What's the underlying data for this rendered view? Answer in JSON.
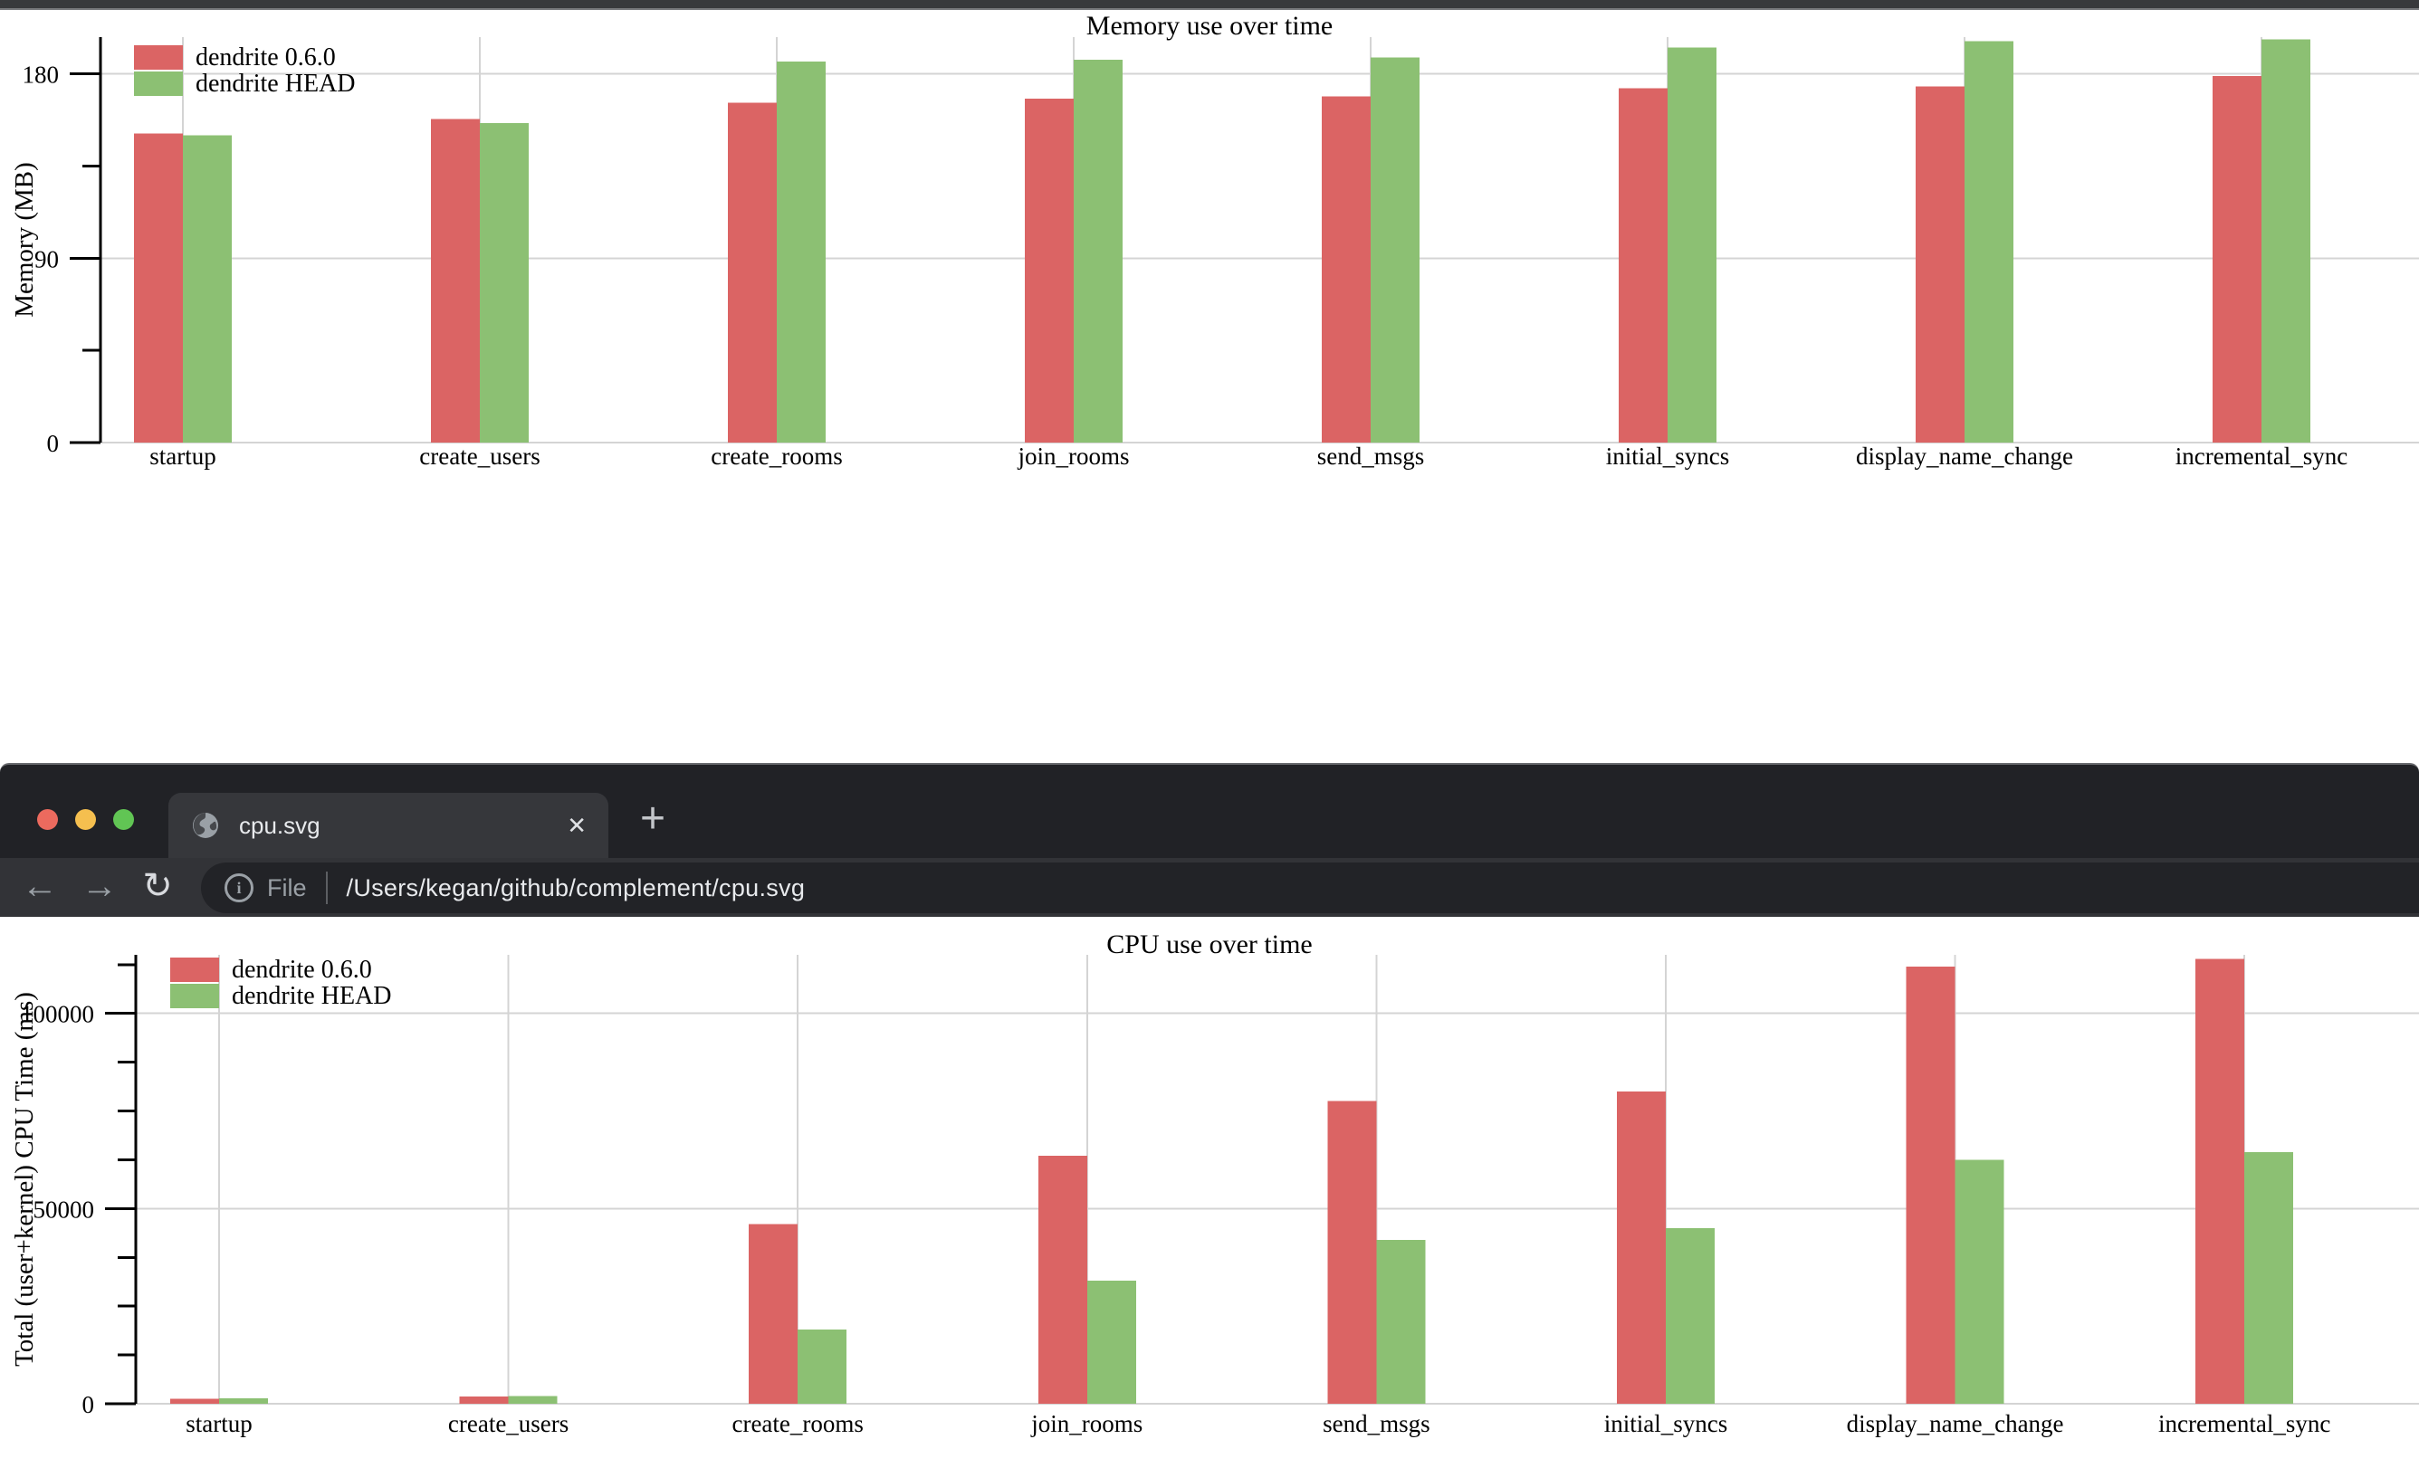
{
  "browser": {
    "traffic_lights": [
      {
        "name": "close",
        "color": "#ec6a5e"
      },
      {
        "name": "minimize",
        "color": "#f5bf4f"
      },
      {
        "name": "zoom",
        "color": "#61c554"
      }
    ],
    "tab": {
      "title": "cpu.svg",
      "close_glyph": "✕"
    },
    "new_tab_glyph": "+",
    "toolbar": {
      "back_glyph": "←",
      "forward_glyph": "→",
      "reload_glyph": "↻",
      "info_glyph": "i",
      "file_label": "File",
      "url": "/Users/kegan/github/complement/cpu.svg"
    }
  },
  "chart_data": [
    {
      "id": "memory",
      "type": "bar",
      "title": "Memory use over time",
      "xlabel": "",
      "ylabel": "Memory (MB)",
      "categories": [
        "startup",
        "create_users",
        "create_rooms",
        "join_rooms",
        "send_msgs",
        "initial_syncs",
        "display_name_change",
        "incremental_sync"
      ],
      "series": [
        {
          "name": "dendrite 0.6.0",
          "color": "#db6464",
          "values": [
            151,
            158,
            166,
            168,
            169,
            173,
            174,
            179
          ]
        },
        {
          "name": "dendrite HEAD",
          "color": "#8cc073",
          "values": [
            150,
            156,
            186,
            187,
            188,
            193,
            196,
            197
          ]
        }
      ],
      "ylim": [
        0,
        198
      ],
      "yticks": [
        0,
        90,
        180
      ],
      "ytick_labels": [
        "0",
        "90",
        "180"
      ],
      "minor_yticks": [
        45,
        135
      ],
      "grid": true,
      "legend_position": "top-left"
    },
    {
      "id": "cpu",
      "type": "bar",
      "title": "CPU use over time",
      "xlabel": "",
      "ylabel": "Total (user+kernel) CPU Time (ms)",
      "categories": [
        "startup",
        "create_users",
        "create_rooms",
        "join_rooms",
        "send_msgs",
        "initial_syncs",
        "display_name_change",
        "incremental_sync"
      ],
      "series": [
        {
          "name": "dendrite 0.6.0",
          "color": "#db6464",
          "values": [
            1300,
            1800,
            46000,
            63500,
            77500,
            80000,
            112000,
            114000
          ]
        },
        {
          "name": "dendrite HEAD",
          "color": "#8cc073",
          "values": [
            1400,
            1950,
            19000,
            31500,
            42000,
            45000,
            62500,
            64500
          ]
        }
      ],
      "ylim": [
        0,
        115000
      ],
      "yticks": [
        0,
        50000,
        100000
      ],
      "ytick_labels": [
        "0",
        "50000",
        "100000"
      ],
      "minor_yticks": [
        12500,
        25000,
        37500,
        62500,
        75000,
        87500,
        112500
      ],
      "grid": true,
      "legend_position": "top-left"
    }
  ]
}
